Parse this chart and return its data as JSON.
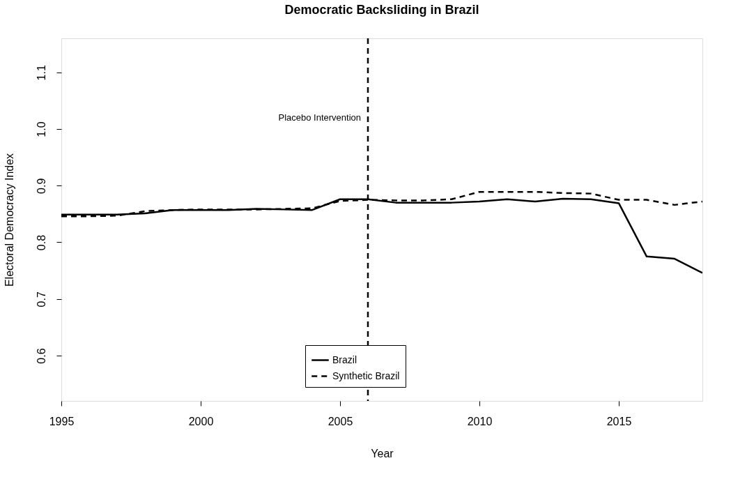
{
  "chart_data": {
    "type": "line",
    "title": "Democratic Backsliding in Brazil",
    "xlabel": "Year",
    "ylabel": "Electoral Democracy Index",
    "x": [
      1995,
      1996,
      1997,
      1998,
      1999,
      2000,
      2001,
      2002,
      2003,
      2004,
      2005,
      2006,
      2007,
      2008,
      2009,
      2010,
      2011,
      2012,
      2013,
      2014,
      2015,
      2016,
      2017,
      2018
    ],
    "series": [
      {
        "name": "Brazil",
        "color": "#000000",
        "line_style": "solid",
        "values": [
          0.849,
          0.849,
          0.849,
          0.851,
          0.857,
          0.857,
          0.857,
          0.859,
          0.858,
          0.857,
          0.876,
          0.876,
          0.87,
          0.87,
          0.87,
          0.872,
          0.876,
          0.872,
          0.877,
          0.876,
          0.869,
          0.775,
          0.771,
          0.746
        ]
      },
      {
        "name": "Synthetic Brazil",
        "color": "#000000",
        "line_style": "dashed",
        "values": [
          0.846,
          0.846,
          0.847,
          0.855,
          0.857,
          0.858,
          0.858,
          0.858,
          0.859,
          0.86,
          0.873,
          0.875,
          0.874,
          0.874,
          0.876,
          0.889,
          0.889,
          0.889,
          0.887,
          0.886,
          0.875,
          0.875,
          0.866,
          0.872
        ]
      }
    ],
    "xlim": [
      1995,
      2018
    ],
    "xticks": [
      1995,
      2000,
      2005,
      2010,
      2015
    ],
    "ylim": [
      0.52,
      1.16
    ],
    "yticks": [
      {
        "value": 0.6,
        "label": "0.6"
      },
      {
        "value": 0.7,
        "label": "0.7"
      },
      {
        "value": 0.8,
        "label": "0.8"
      },
      {
        "value": 0.9,
        "label": "0.9"
      },
      {
        "value": 1.0,
        "label": "1.0"
      },
      {
        "value": 1.1,
        "label": "1.1"
      }
    ],
    "ref_lines": [
      {
        "axis": "x",
        "value": 2006,
        "label": "Placebo Intervention",
        "line_style": "dashed",
        "color": "#000000"
      }
    ],
    "legend": "bottom",
    "grid": false
  }
}
